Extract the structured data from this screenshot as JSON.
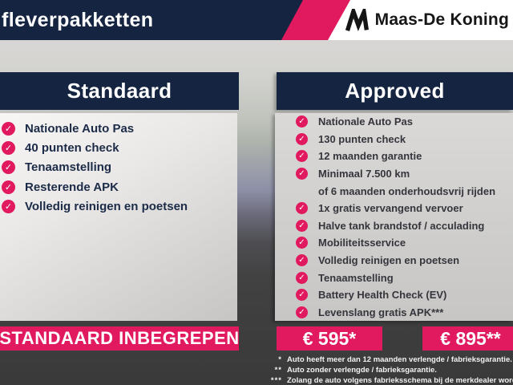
{
  "header": {
    "title": "fleverpakketten",
    "brand": "Maas-De Koning"
  },
  "colors": {
    "navy": "#152440",
    "pink": "#E1195E",
    "panel_gray": "#D5D4D2",
    "background_dark": "#3E3E3E",
    "topbar_white": "#FFFFFF"
  },
  "icons": {
    "check_glyph": "✓",
    "brand_mark": "maas-de-koning-m"
  },
  "standard": {
    "title": "Standaard",
    "items": [
      "Nationale Auto Pas",
      "40 punten check",
      "Tenaamstelling",
      "Resterende APK",
      "Volledig reinigen en poetsen"
    ],
    "footer_label": "STANDAARD INBEGREPEN"
  },
  "approved": {
    "title": "Approved",
    "items": [
      {
        "text": "Nationale Auto Pas",
        "check": true
      },
      {
        "text": "130 punten check",
        "check": true
      },
      {
        "text": "12 maanden garantie",
        "check": true
      },
      {
        "text": "Minimaal 7.500 km",
        "check": true
      },
      {
        "text": "of 6 maanden onderhoudsvrij rijden",
        "check": false
      },
      {
        "text": "1x gratis vervangend vervoer",
        "check": true
      },
      {
        "text": "Halve tank brandstof / acculading",
        "check": true
      },
      {
        "text": "Mobiliteitsservice",
        "check": true
      },
      {
        "text": "Volledig reinigen en poetsen",
        "check": true
      },
      {
        "text": "Tenaamstelling",
        "check": true
      },
      {
        "text": "Battery Health Check (EV)",
        "check": true
      },
      {
        "text": "Levenslang gratis APK***",
        "check": true
      }
    ],
    "price_with_warranty": "€ 595*",
    "price_without_warranty": "€ 895**"
  },
  "footnotes": [
    {
      "marker": "*",
      "text": "Auto heeft meer dan 12 maanden verlengde / fabrieksgarantie."
    },
    {
      "marker": "**",
      "text": "Auto zonder verlengde / fabrieksgarantie."
    },
    {
      "marker": "***",
      "text": "Zolang de auto volgens fabrieksschema bij de merkdealer wordt onderhouden."
    }
  ]
}
